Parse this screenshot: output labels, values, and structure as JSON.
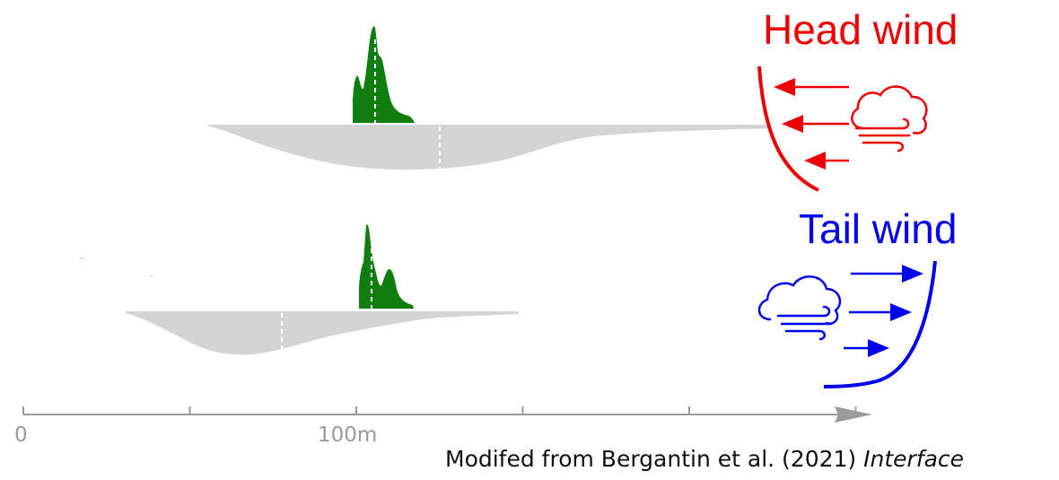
{
  "labels": {
    "head_wind": "Head wind",
    "tail_wind": "Tail wind"
  },
  "axis": {
    "tick_labels": [
      "0",
      "100m"
    ],
    "tick_positions_m": [
      0,
      50,
      100,
      150,
      200,
      250
    ]
  },
  "caption": {
    "text": "Modifed from Bergantin et al. (2021) ",
    "journal": "Interface"
  },
  "colors": {
    "head": "#ee0000",
    "tail": "#0000ee",
    "green": "#0f7d0f",
    "gray": "#d4d4d4",
    "axis": "#9a9a9a"
  },
  "icons": [
    "wind-cloud-icon",
    "arrow-left-icon",
    "arrow-right-icon"
  ]
}
